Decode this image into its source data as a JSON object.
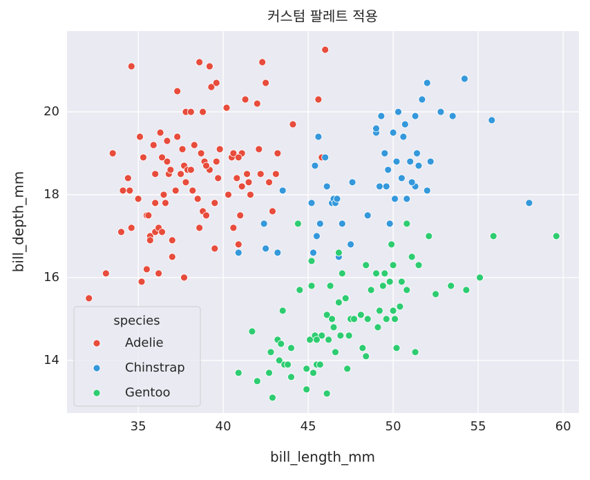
{
  "chart_data": {
    "type": "scatter",
    "title": "커스텀 팔레트 적용",
    "x_label": "bill_length_mm",
    "y_label": "bill_depth_mm",
    "xlim": [
      30.81,
      60.93
    ],
    "ylim": [
      12.73,
      21.95
    ],
    "xticks": [
      35,
      40,
      45,
      50,
      55,
      60
    ],
    "yticks": [
      14,
      16,
      18,
      20
    ],
    "grid": true,
    "legend_title": "species",
    "legend_position": "lower left",
    "series": [
      {
        "name": "Adelie",
        "color": "#e74c3c",
        "x": [
          32.1,
          33.1,
          33.5,
          34.0,
          34.1,
          34.4,
          34.5,
          34.6,
          34.6,
          35.0,
          35.1,
          35.2,
          35.3,
          35.5,
          35.5,
          35.6,
          35.7,
          35.7,
          35.9,
          36.0,
          36.0,
          36.0,
          36.2,
          36.2,
          36.3,
          36.4,
          36.5,
          36.6,
          36.7,
          36.7,
          36.8,
          36.9,
          37.0,
          37.2,
          37.3,
          37.3,
          37.5,
          37.6,
          37.7,
          37.7,
          37.8,
          37.8,
          37.9,
          38.1,
          38.1,
          38.2,
          38.3,
          38.5,
          38.6,
          38.6,
          38.7,
          38.8,
          38.8,
          38.9,
          39.0,
          39.2,
          39.2,
          39.3,
          39.5,
          39.5,
          39.6,
          39.6,
          39.7,
          39.8,
          40.2,
          40.3,
          40.5,
          40.6,
          40.6,
          40.8,
          40.9,
          41.1,
          41.1,
          41.3,
          41.4,
          41.5,
          41.6,
          42.0,
          42.1,
          42.2,
          42.3,
          42.5,
          42.7,
          42.9,
          43.2,
          43.1,
          44.1,
          45.6,
          46.0,
          45.8,
          41.0,
          40.9,
          37.0,
          36.4,
          39.0
        ],
        "values": [
          15.5,
          16.1,
          19.0,
          17.1,
          18.1,
          18.4,
          18.1,
          21.1,
          17.2,
          17.9,
          19.4,
          15.9,
          18.9,
          17.5,
          16.2,
          17.5,
          17.0,
          16.9,
          19.2,
          18.5,
          17.8,
          17.1,
          17.2,
          16.1,
          19.5,
          17.1,
          18.0,
          17.8,
          19.3,
          18.8,
          18.5,
          18.6,
          16.9,
          18.1,
          20.5,
          19.4,
          18.5,
          19.1,
          18.7,
          16.0,
          20.0,
          18.3,
          18.6,
          20.0,
          18.6,
          18.1,
          19.2,
          17.9,
          21.2,
          17.2,
          19.0,
          20.0,
          17.6,
          18.8,
          17.5,
          21.1,
          18.6,
          20.6,
          17.8,
          16.7,
          20.7,
          18.8,
          18.4,
          19.1,
          20.1,
          18.0,
          18.9,
          19.0,
          17.2,
          18.4,
          16.8,
          19.0,
          18.2,
          20.3,
          18.5,
          18.3,
          18.0,
          20.2,
          19.1,
          18.5,
          21.2,
          20.7,
          18.3,
          17.6,
          19.0,
          18.5,
          19.7,
          20.3,
          21.5,
          18.9,
          17.5,
          18.9,
          16.5,
          18.9,
          18.7
        ]
      },
      {
        "name": "Chinstrap",
        "color": "#3498db",
        "x": [
          40.9,
          42.4,
          42.5,
          43.2,
          43.5,
          45.2,
          45.4,
          45.5,
          45.6,
          45.7,
          46.0,
          46.1,
          46.4,
          46.5,
          46.6,
          46.7,
          46.8,
          47.0,
          47.5,
          47.6,
          48.5,
          49.0,
          49.0,
          49.2,
          49.3,
          49.5,
          49.6,
          49.8,
          50.0,
          50.1,
          50.2,
          50.3,
          50.5,
          50.6,
          50.7,
          50.8,
          51.0,
          51.3,
          51.3,
          51.4,
          51.5,
          51.7,
          52.0,
          52.0,
          52.2,
          52.8,
          53.5,
          54.2,
          55.8,
          58.0,
          49.7,
          51.1,
          45.3
        ],
        "values": [
          16.6,
          17.3,
          16.7,
          16.6,
          18.1,
          17.8,
          18.7,
          17.0,
          19.4,
          17.3,
          18.9,
          18.2,
          17.8,
          17.9,
          17.8,
          17.9,
          16.5,
          17.3,
          16.8,
          18.3,
          17.5,
          19.5,
          19.6,
          18.2,
          19.9,
          19.0,
          18.2,
          17.3,
          19.5,
          17.9,
          18.8,
          20.0,
          18.4,
          19.4,
          19.7,
          17.9,
          18.8,
          19.9,
          18.2,
          19.0,
          18.7,
          20.3,
          20.7,
          18.1,
          18.8,
          20.0,
          19.9,
          20.8,
          19.8,
          17.8,
          18.6,
          18.3,
          16.6
        ]
      },
      {
        "name": "Gentoo",
        "color": "#2ecc71",
        "x": [
          40.9,
          41.7,
          42.0,
          42.7,
          42.8,
          42.9,
          43.2,
          43.3,
          43.4,
          43.5,
          43.6,
          44.0,
          44.4,
          44.5,
          44.9,
          44.9,
          45.1,
          45.2,
          45.2,
          45.3,
          45.4,
          45.5,
          45.7,
          45.8,
          46.1,
          46.2,
          46.3,
          46.4,
          46.5,
          46.6,
          46.8,
          46.9,
          47.2,
          47.3,
          47.5,
          47.7,
          48.1,
          48.2,
          48.4,
          48.5,
          48.7,
          49.0,
          49.1,
          49.2,
          49.4,
          49.5,
          49.6,
          49.8,
          50.0,
          50.1,
          50.2,
          50.4,
          50.5,
          50.8,
          50.8,
          51.1,
          51.3,
          51.5,
          52.1,
          52.5,
          53.4,
          54.3,
          55.1,
          55.9,
          59.6,
          46.1,
          47.0,
          45.5,
          44.0,
          48.4,
          49.9,
          50.0,
          46.8,
          43.8,
          47.4
        ],
        "values": [
          13.7,
          14.7,
          13.5,
          13.7,
          14.2,
          13.1,
          14.5,
          14.0,
          14.4,
          15.2,
          13.9,
          13.6,
          17.3,
          15.7,
          13.3,
          13.8,
          14.5,
          15.8,
          16.4,
          13.7,
          14.6,
          13.9,
          13.9,
          14.6,
          15.1,
          14.5,
          15.8,
          15.0,
          14.8,
          14.2,
          15.4,
          14.6,
          15.5,
          13.8,
          15.0,
          15.0,
          15.1,
          14.3,
          16.3,
          15.0,
          15.7,
          16.1,
          14.8,
          15.2,
          15.8,
          16.1,
          15.0,
          15.9,
          16.3,
          15.0,
          14.3,
          15.3,
          15.9,
          17.3,
          15.7,
          16.5,
          14.2,
          16.3,
          17.0,
          15.6,
          15.8,
          15.7,
          16.0,
          17.0,
          17.0,
          13.2,
          16.1,
          14.5,
          14.3,
          14.1,
          16.8,
          15.2,
          16.6,
          13.9,
          14.6
        ]
      }
    ]
  }
}
